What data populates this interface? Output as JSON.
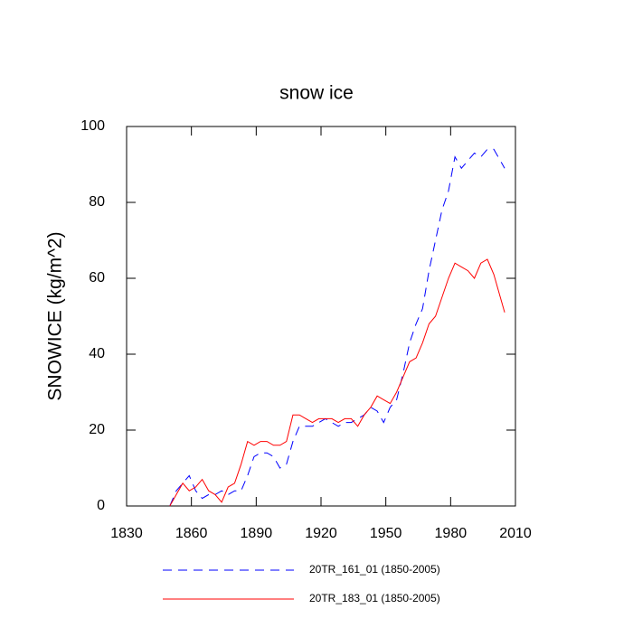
{
  "chart_data": {
    "type": "line",
    "title": "snow ice",
    "ylabel": "SNOWICE  (kg/m^2)",
    "x": [
      1850,
      1853,
      1856,
      1859,
      1862,
      1865,
      1868,
      1871,
      1874,
      1877,
      1880,
      1883,
      1886,
      1889,
      1892,
      1895,
      1898,
      1901,
      1904,
      1907,
      1910,
      1913,
      1916,
      1919,
      1922,
      1925,
      1928,
      1931,
      1934,
      1937,
      1940,
      1943,
      1946,
      1949,
      1952,
      1955,
      1958,
      1961,
      1964,
      1967,
      1970,
      1973,
      1976,
      1979,
      1982,
      1985,
      1988,
      1991,
      1994,
      1997,
      2000,
      2003,
      2005
    ],
    "series": [
      {
        "name": "20TR_161_01 (1850-2005)",
        "color": "#0000ff",
        "line_style": "dashed",
        "values": [
          0,
          4,
          6,
          8,
          4,
          2,
          3,
          3,
          4,
          3,
          4,
          4,
          8,
          13,
          14,
          14,
          13,
          10,
          11,
          17,
          21,
          21,
          21,
          22,
          23,
          22,
          21,
          22,
          22,
          23,
          24,
          26,
          25,
          22,
          26,
          28,
          35,
          43,
          48,
          52,
          62,
          70,
          78,
          83,
          92,
          89,
          91,
          93,
          92,
          94,
          94,
          91,
          89
        ]
      },
      {
        "name": "20TR_183_01 (1850-2005)",
        "color": "#ff0000",
        "line_style": "solid",
        "values": [
          0,
          3,
          6,
          4,
          5,
          7,
          4,
          3,
          1,
          5,
          6,
          11,
          17,
          16,
          17,
          17,
          16,
          16,
          17,
          24,
          24,
          23,
          22,
          23,
          23,
          23,
          22,
          23,
          23,
          21,
          24,
          26,
          29,
          28,
          27,
          30,
          34,
          38,
          39,
          43,
          48,
          50,
          55,
          60,
          64,
          63,
          62,
          60,
          64,
          65,
          61,
          55,
          51
        ]
      }
    ],
    "xlim": [
      1830,
      2010
    ],
    "xticks": [
      1830,
      1860,
      1890,
      1920,
      1950,
      1980,
      2010
    ],
    "ylim": [
      0,
      100
    ],
    "yticks": [
      0,
      20,
      40,
      60,
      80,
      100
    ]
  }
}
